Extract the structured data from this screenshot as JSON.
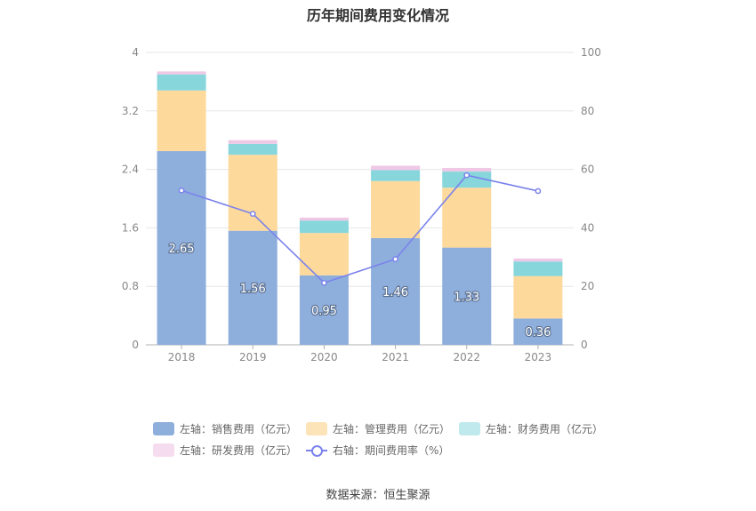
{
  "title": "历年期间费用变化情况",
  "source": "数据来源：恒生聚源",
  "chart_data": {
    "type": "bar",
    "stacked": true,
    "categories": [
      "2018",
      "2019",
      "2020",
      "2021",
      "2022",
      "2023"
    ],
    "y_left": {
      "ticks": [
        "0",
        "0.8",
        "1.6",
        "2.4",
        "3.2",
        "4"
      ],
      "ylim": [
        0,
        4
      ]
    },
    "y_right": {
      "ticks": [
        "0",
        "20",
        "40",
        "60",
        "80",
        "100"
      ],
      "ylim": [
        0,
        100
      ]
    },
    "series": [
      {
        "name": "左轴：销售费用（亿元）",
        "axis": "left",
        "color": "#8eaedc",
        "values": [
          2.65,
          1.56,
          0.95,
          1.46,
          1.33,
          0.36
        ],
        "labels": [
          "2.65",
          "1.56",
          "0.95",
          "1.46",
          "1.33",
          "0.36"
        ]
      },
      {
        "name": "左轴：管理费用（亿元）",
        "axis": "left",
        "color": "#fdd99b",
        "values": [
          0.83,
          1.04,
          0.58,
          0.78,
          0.82,
          0.58
        ]
      },
      {
        "name": "左轴：财务费用（亿元）",
        "axis": "left",
        "color": "#87d6dc",
        "values": [
          0.22,
          0.15,
          0.17,
          0.15,
          0.22,
          0.2
        ]
      },
      {
        "name": "左轴：研发费用（亿元）",
        "axis": "left",
        "color": "#eec8e5",
        "values": [
          0.04,
          0.05,
          0.04,
          0.06,
          0.05,
          0.04
        ]
      },
      {
        "name": "右轴：期间费用率（%）",
        "axis": "right",
        "type": "line",
        "color": "#7b83eb",
        "values": [
          52.8,
          44.8,
          21.2,
          29.3,
          58.0,
          52.6
        ]
      }
    ],
    "legend_swatches": [
      "#8eaedc",
      "#fde3b8",
      "#bfe9ec",
      "#f6dcef"
    ],
    "grid": true,
    "legend_position": "bottom"
  }
}
